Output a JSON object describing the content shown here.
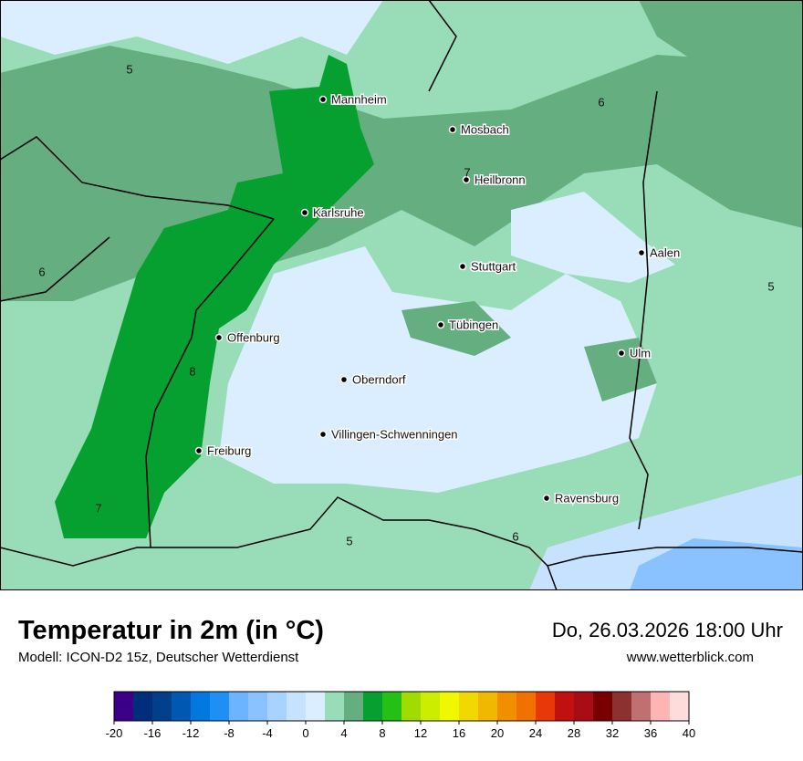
{
  "header": {
    "title": "Temperatur in 2m (in °C)",
    "subtitle": "Modell: ICON-D2 15z, Deutscher Wetterdienst",
    "datetime": "Do, 26.03.2026 18:00 Uhr",
    "website": "www.wetterblick.com"
  },
  "cities": [
    "Mannheim",
    "Mosbach",
    "Heilbronn",
    "Karlsruhe",
    "Aalen",
    "Stuttgart",
    "Tübingen",
    "Ulm",
    "Offenburg",
    "Oberndorf",
    "Villingen-Schwenningen",
    "Freiburg",
    "Ravensburg"
  ],
  "contour_labels": [
    5,
    6,
    7,
    6,
    5,
    8,
    7,
    5,
    6
  ],
  "colorbar": {
    "ticks": [
      -20,
      -16,
      -12,
      -8,
      -4,
      0,
      4,
      8,
      12,
      16,
      20,
      24,
      28,
      32,
      36,
      40
    ],
    "colors": [
      "#3c0088",
      "#002e7a",
      "#003f8a",
      "#0058b0",
      "#0078e0",
      "#1e90f5",
      "#6cb4ff",
      "#8ac2ff",
      "#a8d2ff",
      "#c6e2ff",
      "#dbeeff",
      "#98dcb8",
      "#64ae80",
      "#06a030",
      "#24c016",
      "#a0dc00",
      "#ccec00",
      "#f0f800",
      "#f0d800",
      "#f0b800",
      "#f09000",
      "#f07000",
      "#e83808",
      "#c01010",
      "#a80c14",
      "#780000",
      "#8c3030",
      "#c07070",
      "#ffb4b4",
      "#ffdcdc"
    ]
  }
}
